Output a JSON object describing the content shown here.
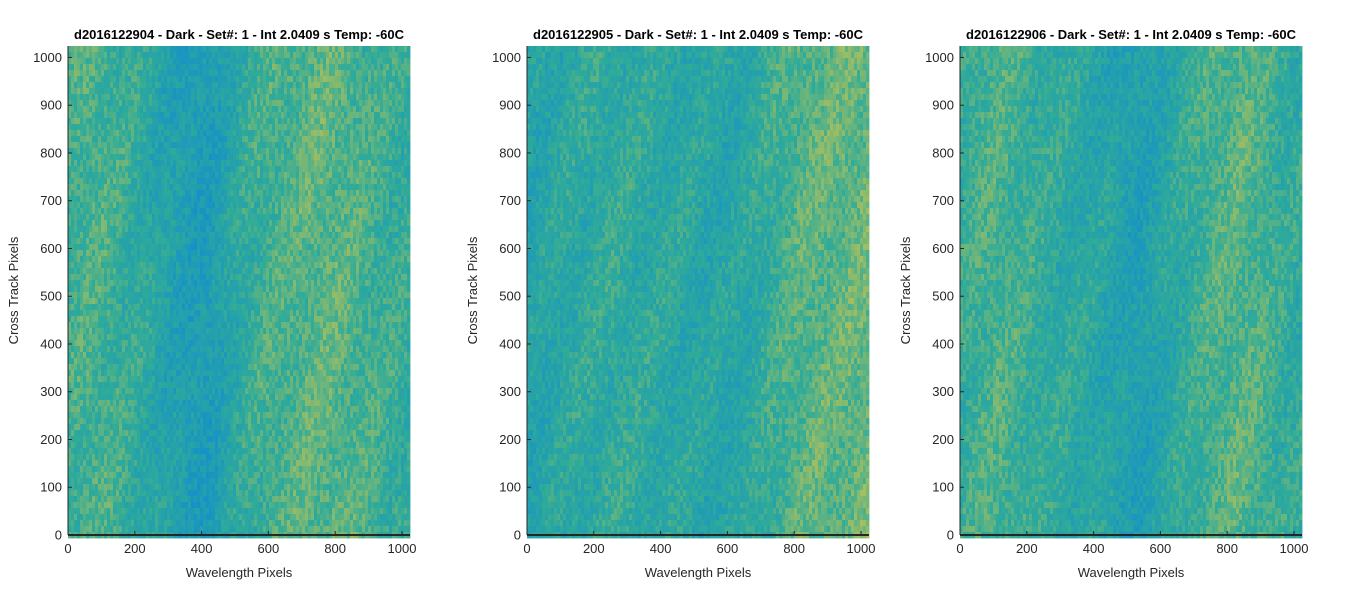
{
  "colors": {
    "low": "#1591c9",
    "mid": "#2fab99",
    "high": "#b8c257"
  },
  "chart_data": [
    {
      "type": "heatmap",
      "title": "d2016122904 - Dark - Set#: 1 - Int 2.0409 s Temp: -60C",
      "xlabel": "Wavelength Pixels",
      "ylabel": "Cross Track Pixels",
      "xlim": [
        0,
        1024
      ],
      "ylim": [
        0,
        1024
      ],
      "xticks": [
        0,
        200,
        400,
        600,
        800,
        1000
      ],
      "yticks": [
        0,
        100,
        200,
        300,
        400,
        500,
        600,
        700,
        800,
        900,
        1000
      ],
      "grid": false,
      "column_profile_x": [
        0,
        60,
        120,
        180,
        240,
        300,
        360,
        420,
        480,
        540,
        600,
        660,
        720,
        780,
        840,
        900,
        960,
        1024
      ],
      "column_profile_level": [
        0.55,
        0.6,
        0.58,
        0.5,
        0.42,
        0.32,
        0.22,
        0.2,
        0.35,
        0.5,
        0.58,
        0.62,
        0.66,
        0.68,
        0.64,
        0.58,
        0.52,
        0.48
      ]
    },
    {
      "type": "heatmap",
      "title": "d2016122905 - Dark - Set#: 1 - Int 2.0409 s Temp: -60C",
      "xlabel": "Wavelength Pixels",
      "ylabel": "Cross Track Pixels",
      "xlim": [
        0,
        1024
      ],
      "ylim": [
        0,
        1024
      ],
      "xticks": [
        0,
        200,
        400,
        600,
        800,
        1000
      ],
      "yticks": [
        0,
        100,
        200,
        300,
        400,
        500,
        600,
        700,
        800,
        900,
        1000
      ],
      "grid": false,
      "column_profile_x": [
        0,
        60,
        120,
        180,
        240,
        300,
        360,
        420,
        480,
        540,
        600,
        660,
        720,
        780,
        840,
        900,
        960,
        1024
      ],
      "column_profile_level": [
        0.35,
        0.38,
        0.42,
        0.45,
        0.47,
        0.46,
        0.44,
        0.42,
        0.4,
        0.38,
        0.37,
        0.4,
        0.5,
        0.6,
        0.66,
        0.68,
        0.7,
        0.72
      ]
    },
    {
      "type": "heatmap",
      "title": "d2016122906 - Dark - Set#: 1 - Int 2.0409 s Temp: -60C",
      "xlabel": "Wavelength Pixels",
      "ylabel": "Cross Track Pixels",
      "xlim": [
        0,
        1024
      ],
      "ylim": [
        0,
        1024
      ],
      "xticks": [
        0,
        200,
        400,
        600,
        800,
        1000
      ],
      "yticks": [
        0,
        100,
        200,
        300,
        400,
        500,
        600,
        700,
        800,
        900,
        1000
      ],
      "grid": false,
      "column_profile_x": [
        0,
        60,
        120,
        180,
        240,
        300,
        360,
        420,
        480,
        540,
        600,
        660,
        720,
        780,
        840,
        900,
        960,
        1024
      ],
      "column_profile_level": [
        0.5,
        0.58,
        0.6,
        0.55,
        0.48,
        0.45,
        0.42,
        0.38,
        0.3,
        0.25,
        0.35,
        0.45,
        0.55,
        0.62,
        0.66,
        0.6,
        0.5,
        0.45
      ]
    }
  ]
}
